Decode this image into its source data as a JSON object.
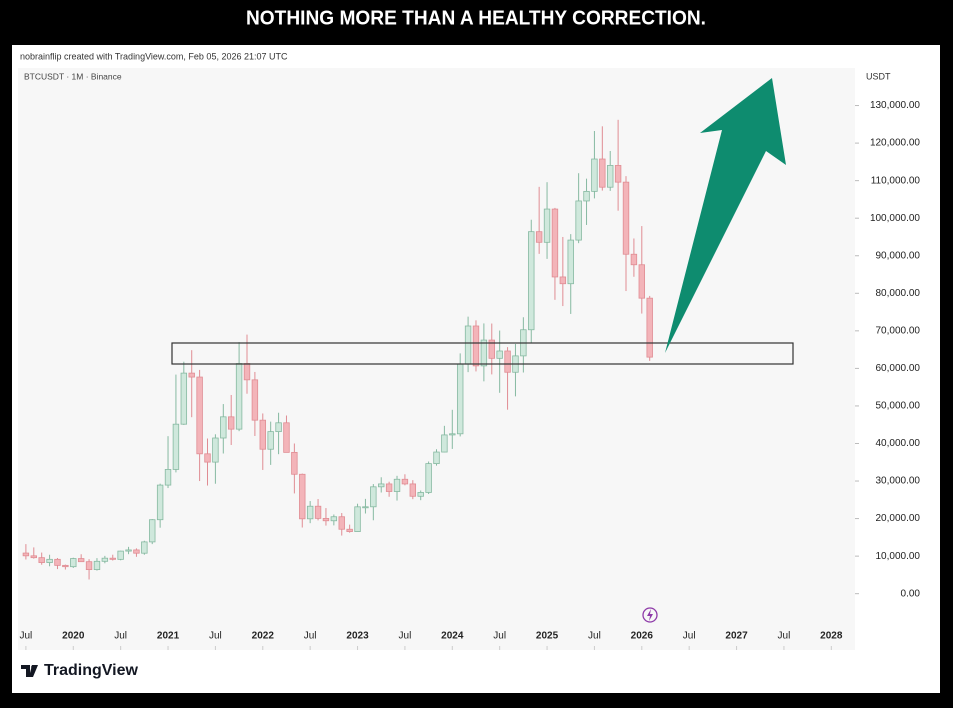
{
  "chart_data": {
    "type": "candlestick",
    "title": "NOTHING MORE THAN A HEALTHY CORRECTION.",
    "credit": "nobrainflip created with TradingView.com, Feb 05, 2026 21:07 UTC",
    "symbol": "BTCUSDT · 1M · Binance",
    "y_label": "USDT",
    "brand": "TradingView",
    "up_color": "#cfe8dc",
    "down_color": "#f3b4b9",
    "x": [
      "2019-07",
      "2019-08",
      "2019-09",
      "2019-10",
      "2019-11",
      "2019-12",
      "2020-01",
      "2020-02",
      "2020-03",
      "2020-04",
      "2020-05",
      "2020-06",
      "2020-07",
      "2020-08",
      "2020-09",
      "2020-10",
      "2020-11",
      "2020-12",
      "2021-01",
      "2021-02",
      "2021-03",
      "2021-04",
      "2021-05",
      "2021-06",
      "2021-07",
      "2021-08",
      "2021-09",
      "2021-10",
      "2021-11",
      "2021-12",
      "2022-01",
      "2022-02",
      "2022-03",
      "2022-04",
      "2022-05",
      "2022-06",
      "2022-07",
      "2022-08",
      "2022-09",
      "2022-10",
      "2022-11",
      "2022-12",
      "2023-01",
      "2023-02",
      "2023-03",
      "2023-04",
      "2023-05",
      "2023-06",
      "2023-07",
      "2023-08",
      "2023-09",
      "2023-10",
      "2023-11",
      "2023-12",
      "2024-01",
      "2024-02",
      "2024-03",
      "2024-04",
      "2024-05",
      "2024-06",
      "2024-07",
      "2024-08",
      "2024-09",
      "2024-10",
      "2024-11",
      "2024-12",
      "2025-01",
      "2025-02",
      "2025-03",
      "2025-04",
      "2025-05",
      "2025-06",
      "2025-07",
      "2025-08",
      "2025-09",
      "2025-10",
      "2025-11",
      "2025-12",
      "2026-01",
      "2026-02"
    ],
    "open": [
      10818,
      10085,
      9590,
      8290,
      9150,
      7540,
      7190,
      9350,
      8520,
      6410,
      8620,
      9450,
      9140,
      11340,
      11650,
      10780,
      13790,
      19700,
      28920,
      33090,
      45140,
      58740,
      57690,
      37250,
      35040,
      41460,
      47100,
      43820,
      61300,
      56950,
      46210,
      38470,
      43160,
      45510,
      37630,
      31800,
      19940,
      23290,
      20050,
      19420,
      20490,
      17160,
      16540,
      23130,
      23140,
      28460,
      29230,
      27210,
      30470,
      29230,
      25940,
      26960,
      34640,
      37720,
      42280,
      42580,
      61130,
      71290,
      60670,
      67540,
      62680,
      64630,
      58970,
      63330,
      70290,
      96410,
      93580,
      102430,
      84350,
      82550,
      94170,
      104590,
      107140,
      115760,
      108250,
      114050,
      109600,
      90400,
      87600,
      78700
    ],
    "high": [
      13200,
      12325,
      10950,
      10370,
      9500,
      7750,
      9580,
      10500,
      9190,
      9470,
      10070,
      10380,
      11440,
      12470,
      12070,
      14100,
      19860,
      29300,
      41950,
      58350,
      61780,
      64850,
      59590,
      41330,
      42450,
      50500,
      52920,
      67000,
      69000,
      59050,
      48000,
      45820,
      48190,
      47450,
      40000,
      31990,
      24670,
      25200,
      22800,
      21090,
      21480,
      18390,
      23960,
      25250,
      29190,
      31000,
      29820,
      31390,
      31800,
      30230,
      27480,
      35200,
      38450,
      44700,
      48970,
      64000,
      73780,
      72800,
      71980,
      71950,
      70080,
      65660,
      66500,
      73620,
      99590,
      108350,
      109590,
      102750,
      95000,
      95760,
      111980,
      110530,
      123220,
      124470,
      117900,
      126200,
      111200,
      94600,
      97900,
      79300
    ],
    "low": [
      9100,
      9320,
      7710,
      7300,
      6550,
      6430,
      6850,
      8450,
      3780,
      6150,
      8100,
      8830,
      8890,
      10520,
      9820,
      10370,
      13200,
      17570,
      28130,
      32300,
      44950,
      47000,
      30000,
      28800,
      29280,
      37330,
      39600,
      43280,
      53250,
      42000,
      32950,
      34300,
      37150,
      37700,
      26700,
      17620,
      18780,
      19520,
      18130,
      18190,
      15480,
      16250,
      16500,
      21350,
      19550,
      26940,
      25810,
      24800,
      28860,
      25170,
      24900,
      26540,
      34100,
      37630,
      38550,
      41880,
      59000,
      59190,
      56550,
      58400,
      53500,
      49000,
      52550,
      58900,
      66840,
      90500,
      89160,
      78260,
      76600,
      74500,
      93350,
      98200,
      105270,
      107350,
      107270,
      102000,
      80600,
      84400,
      74600,
      62000
    ],
    "close": [
      10085,
      9590,
      8290,
      9150,
      7540,
      7190,
      9350,
      8520,
      6410,
      8620,
      9450,
      9140,
      11340,
      11650,
      10780,
      13790,
      19700,
      28920,
      33090,
      45140,
      58740,
      57690,
      37250,
      35040,
      41460,
      47100,
      43820,
      61300,
      56950,
      46210,
      38470,
      43160,
      45510,
      37630,
      31800,
      19940,
      23290,
      20050,
      19420,
      20490,
      17160,
      16540,
      23130,
      23140,
      28460,
      29230,
      27210,
      30470,
      29230,
      25940,
      26960,
      34640,
      37720,
      42280,
      42580,
      61130,
      71290,
      60670,
      67540,
      62680,
      64630,
      58970,
      63330,
      70290,
      96410,
      93580,
      102430,
      84350,
      82550,
      94170,
      104590,
      107140,
      115760,
      108250,
      114050,
      109600,
      90400,
      87600,
      78700,
      63000
    ],
    "xlim": [
      "2019-06",
      "2028-04"
    ],
    "xticks": [
      {
        "value": "2019-07",
        "label": "Jul"
      },
      {
        "value": "2020-01",
        "label": "2020"
      },
      {
        "value": "2020-07",
        "label": "Jul"
      },
      {
        "value": "2021-01",
        "label": "2021"
      },
      {
        "value": "2021-07",
        "label": "Jul"
      },
      {
        "value": "2022-01",
        "label": "2022"
      },
      {
        "value": "2022-07",
        "label": "Jul"
      },
      {
        "value": "2023-01",
        "label": "2023"
      },
      {
        "value": "2023-07",
        "label": "Jul"
      },
      {
        "value": "2024-01",
        "label": "2024"
      },
      {
        "value": "2024-07",
        "label": "Jul"
      },
      {
        "value": "2025-01",
        "label": "2025"
      },
      {
        "value": "2025-07",
        "label": "Jul"
      },
      {
        "value": "2026-01",
        "label": "2026"
      },
      {
        "value": "2026-07",
        "label": "Jul"
      },
      {
        "value": "2027-01",
        "label": "2027"
      },
      {
        "value": "2027-07",
        "label": "Jul"
      },
      {
        "value": "2028-01",
        "label": "2028"
      }
    ],
    "ylim": [
      -15000,
      140000
    ],
    "yticks": [
      {
        "value": 0,
        "label": "0.00"
      },
      {
        "value": 10000,
        "label": "10,000.00"
      },
      {
        "value": 20000,
        "label": "20,000.00"
      },
      {
        "value": 30000,
        "label": "30,000.00"
      },
      {
        "value": 40000,
        "label": "40,000.00"
      },
      {
        "value": 50000,
        "label": "50,000.00"
      },
      {
        "value": 60000,
        "label": "60,000.00"
      },
      {
        "value": 70000,
        "label": "70,000.00"
      },
      {
        "value": 80000,
        "label": "80,000.00"
      },
      {
        "value": 90000,
        "label": "90,000.00"
      },
      {
        "value": 100000,
        "label": "100,000.00"
      },
      {
        "value": 110000,
        "label": "110,000.00"
      },
      {
        "value": 120000,
        "label": "120,000.00"
      },
      {
        "value": 130000,
        "label": "130,000.00"
      }
    ]
  }
}
